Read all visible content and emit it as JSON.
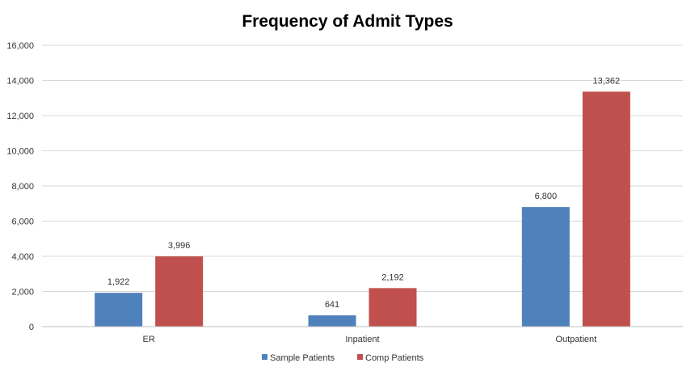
{
  "chart_data": {
    "type": "bar",
    "title": "Frequency of Admit Types",
    "xlabel": "",
    "ylabel": "",
    "categories": [
      "ER",
      "Inpatient",
      "Outpatient"
    ],
    "series": [
      {
        "name": "Sample Patients",
        "values": [
          1922,
          641,
          6800
        ],
        "labels": [
          "1,922",
          "641",
          "6,800"
        ],
        "color": "#4f81bd"
      },
      {
        "name": "Comp Patients",
        "values": [
          3996,
          2192,
          13362
        ],
        "labels": [
          "3,996",
          "2,192",
          "13,362"
        ],
        "color": "#c0504d"
      }
    ],
    "ylim": [
      0,
      16000
    ],
    "yticks": [
      {
        "value": 0,
        "label": "0"
      },
      {
        "value": 2000,
        "label": "2,000"
      },
      {
        "value": 4000,
        "label": "4,000"
      },
      {
        "value": 6000,
        "label": "6,000"
      },
      {
        "value": 8000,
        "label": "8,000"
      },
      {
        "value": 10000,
        "label": "10,000"
      },
      {
        "value": 12000,
        "label": "12,000"
      },
      {
        "value": 14000,
        "label": "14,000"
      },
      {
        "value": 16000,
        "label": "16,000"
      }
    ],
    "grid": true,
    "legend_position": "bottom"
  }
}
